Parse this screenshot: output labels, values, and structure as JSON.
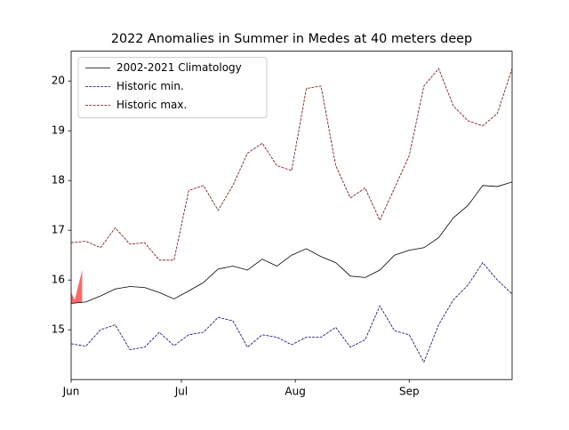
{
  "chart_data": {
    "type": "line",
    "title": "2022 Anomalies in Summer in Medes at 40 meters deep",
    "x": [
      0,
      4,
      8,
      12,
      16,
      20,
      24,
      28,
      32,
      36,
      40,
      44,
      48,
      52,
      56,
      60,
      64,
      68,
      72,
      76,
      80,
      84,
      88,
      92,
      96,
      100,
      104,
      108,
      112,
      116,
      120
    ],
    "series": [
      {
        "name": "2002-2021 Climatology",
        "color": "#000000",
        "dash": "solid",
        "values": [
          15.53,
          15.56,
          15.68,
          15.82,
          15.87,
          15.85,
          15.75,
          15.62,
          15.78,
          15.95,
          16.22,
          16.28,
          16.2,
          16.42,
          16.28,
          16.5,
          16.63,
          16.47,
          16.35,
          16.08,
          16.05,
          16.2,
          16.5,
          16.6,
          16.65,
          16.85,
          17.25,
          17.5,
          17.9,
          17.88,
          17.97
        ]
      },
      {
        "name": "Historic min.",
        "color": "#00008b",
        "dash": "dashed",
        "values": [
          14.72,
          14.67,
          15.0,
          15.1,
          14.6,
          14.65,
          14.95,
          14.68,
          14.9,
          14.95,
          15.25,
          15.18,
          14.65,
          14.9,
          14.85,
          14.7,
          14.85,
          14.85,
          15.05,
          14.65,
          14.8,
          15.48,
          14.98,
          14.9,
          14.35,
          15.1,
          15.6,
          15.9,
          16.35,
          16.0,
          15.72
        ]
      },
      {
        "name": "Historic max.",
        "color": "#8b0000",
        "dash": "dashed",
        "values": [
          16.75,
          16.78,
          16.65,
          17.05,
          16.72,
          16.75,
          16.4,
          16.4,
          17.8,
          17.9,
          17.4,
          17.9,
          18.55,
          18.75,
          18.3,
          18.2,
          19.85,
          19.9,
          18.3,
          17.65,
          17.85,
          17.2,
          17.85,
          18.5,
          19.9,
          20.25,
          19.5,
          19.2,
          19.1,
          19.35,
          20.25
        ]
      }
    ],
    "fill": {
      "color": "#ff0000",
      "x": [
        0,
        1,
        2,
        3
      ],
      "values": [
        15.75,
        15.6,
        15.9,
        16.2
      ],
      "lower": [
        15.53,
        15.54,
        15.55,
        15.55
      ]
    },
    "xlim": [
      0,
      120
    ],
    "xticks": [
      {
        "value": 0,
        "label": "Jun"
      },
      {
        "value": 30,
        "label": "Jul"
      },
      {
        "value": 61,
        "label": "Aug"
      },
      {
        "value": 92,
        "label": "Sep"
      }
    ],
    "ylim": [
      14.0,
      20.6
    ],
    "yticks": [
      15,
      16,
      17,
      18,
      19,
      20
    ],
    "legend": "upper left"
  }
}
